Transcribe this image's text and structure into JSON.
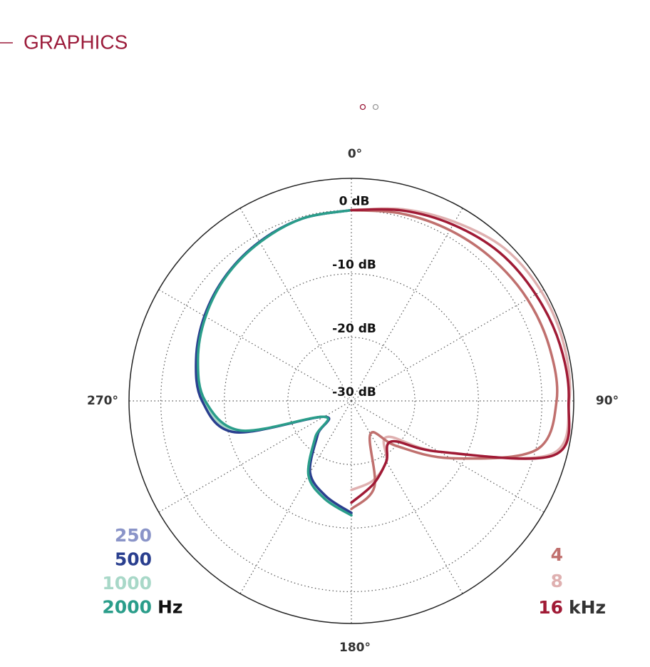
{
  "header": {
    "title": "GRAPHICS"
  },
  "chart_data": {
    "type": "polar",
    "rlim": [
      -30,
      5
    ],
    "rticks": [
      {
        "value": 0,
        "label": "0 dB"
      },
      {
        "value": -10,
        "label": "-10 dB"
      },
      {
        "value": -20,
        "label": "-20 dB"
      },
      {
        "value": -30,
        "label": "-30 dB"
      }
    ],
    "thetaticks": [
      {
        "value": 0,
        "label": "0°"
      },
      {
        "value": 90,
        "label": "90°"
      },
      {
        "value": 180,
        "label": "180°"
      },
      {
        "value": 270,
        "label": "270°"
      }
    ],
    "grid": true,
    "legend": [
      {
        "unit": "Hz",
        "location": "lower left"
      },
      {
        "unit": "kHz",
        "location": "lower right"
      }
    ],
    "series": [
      {
        "name": "250",
        "color": "#8a94c8",
        "legend": 0,
        "x": [
          180,
          195,
          210,
          225,
          240,
          255,
          270,
          285,
          300,
          315,
          330,
          345,
          360
        ],
        "values": [
          -12.3,
          -14.3,
          -16.8,
          -22.3,
          -25,
          -11.2,
          -6.6,
          -4.8,
          -3.3,
          -2.1,
          -1.1,
          -0.3,
          0
        ]
      },
      {
        "name": "500",
        "color": "#2a3f8f",
        "legend": 0,
        "x": [
          180,
          195,
          210,
          225,
          240,
          255,
          270,
          285,
          300,
          315,
          330,
          345,
          360
        ],
        "values": [
          -12.4,
          -14.5,
          -17,
          -22.5,
          -25,
          -11,
          -6.5,
          -4.7,
          -3.3,
          -2.1,
          -1.1,
          -0.3,
          0
        ]
      },
      {
        "name": "1000",
        "color": "#a8d8c8",
        "legend": 0,
        "x": [
          180,
          195,
          210,
          225,
          240,
          255,
          270,
          285,
          300,
          315,
          330,
          345,
          360
        ],
        "values": [
          -12.2,
          -14.2,
          -16.5,
          -22,
          -25,
          -11.5,
          -6.8,
          -4.9,
          -3.4,
          -2.1,
          -1.1,
          -0.3,
          0
        ]
      },
      {
        "name": "2000",
        "color": "#2a9d8a",
        "legend": 0,
        "x": [
          180,
          195,
          210,
          225,
          240,
          255,
          270,
          285,
          300,
          315,
          330,
          345,
          360
        ],
        "values": [
          -12,
          -14,
          -16.5,
          -22,
          -25,
          -12,
          -7,
          -5,
          -3.5,
          -2.2,
          -1.2,
          -0.3,
          0
        ]
      },
      {
        "name": "4",
        "color": "#c0706e",
        "legend": 1,
        "x": [
          0,
          15,
          30,
          45,
          60,
          75,
          90,
          105,
          120,
          135,
          150,
          165,
          180
        ],
        "values": [
          0,
          0.5,
          1,
          1.5,
          2,
          2.3,
          2.3,
          0,
          -12,
          -20,
          -24,
          -16,
          -13
        ]
      },
      {
        "name": "8",
        "color": "#dfb0b0",
        "legend": 1,
        "x": [
          0,
          15,
          30,
          45,
          60,
          75,
          90,
          105,
          120,
          135,
          150,
          165,
          180
        ],
        "values": [
          0,
          1.2,
          2.5,
          4,
          4.5,
          4.6,
          4.3,
          2.5,
          -14,
          -22,
          -19,
          -17,
          -16
        ]
      },
      {
        "name": "16",
        "color": "#a01a35",
        "legend": 1,
        "x": [
          0,
          15,
          30,
          45,
          60,
          75,
          90,
          105,
          120,
          135,
          150,
          165,
          180
        ],
        "values": [
          0,
          1,
          2,
          3,
          3.5,
          4,
          4.2,
          3,
          -14,
          -21,
          -19,
          -16.5,
          -14
        ]
      }
    ]
  }
}
